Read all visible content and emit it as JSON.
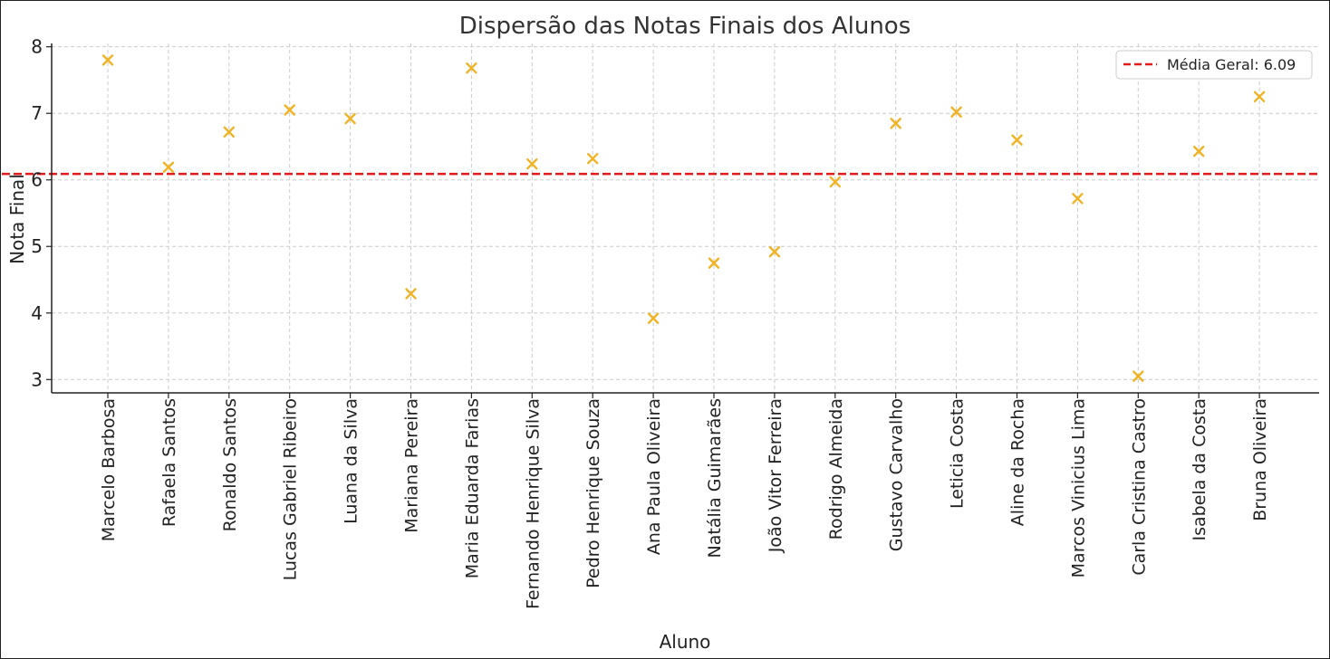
{
  "chart_data": {
    "type": "scatter",
    "title": "Dispersão das Notas Finais dos Alunos",
    "xlabel": "Aluno",
    "ylabel": "Nota Final",
    "ylim": [
      2.8,
      8.05
    ],
    "yticks": [
      3,
      4,
      5,
      6,
      7,
      8
    ],
    "grid": true,
    "legend_position": "top-right",
    "marker_color": "#F0B323",
    "marker": "x",
    "categories": [
      "Marcelo Barbosa",
      "Rafaela Santos",
      "Ronaldo Santos",
      "Lucas Gabriel Ribeiro",
      "Luana da Silva",
      "Mariana Pereira",
      "Maria Eduarda Farias",
      "Fernando Henrique Silva",
      "Pedro Henrique Souza",
      "Ana Paula Oliveira",
      "Natália Guimarães",
      "João Vitor Ferreira",
      "Rodrigo Almeida",
      "Gustavo Carvalho",
      "Leticia Costa",
      "Aline da Rocha",
      "Marcos Vinicius Lima",
      "Carla Cristina Castro",
      "Isabela da Costa",
      "Bruna Oliveira"
    ],
    "values": [
      7.8,
      6.19,
      6.72,
      7.05,
      6.92,
      4.29,
      7.68,
      6.24,
      6.32,
      3.92,
      4.75,
      4.92,
      5.97,
      6.85,
      7.02,
      6.6,
      5.72,
      3.05,
      6.43,
      7.25
    ],
    "reference_line": {
      "label": "Média Geral: 6.09",
      "value": 6.09,
      "color": "#E31A1C",
      "style": "dashed"
    }
  }
}
